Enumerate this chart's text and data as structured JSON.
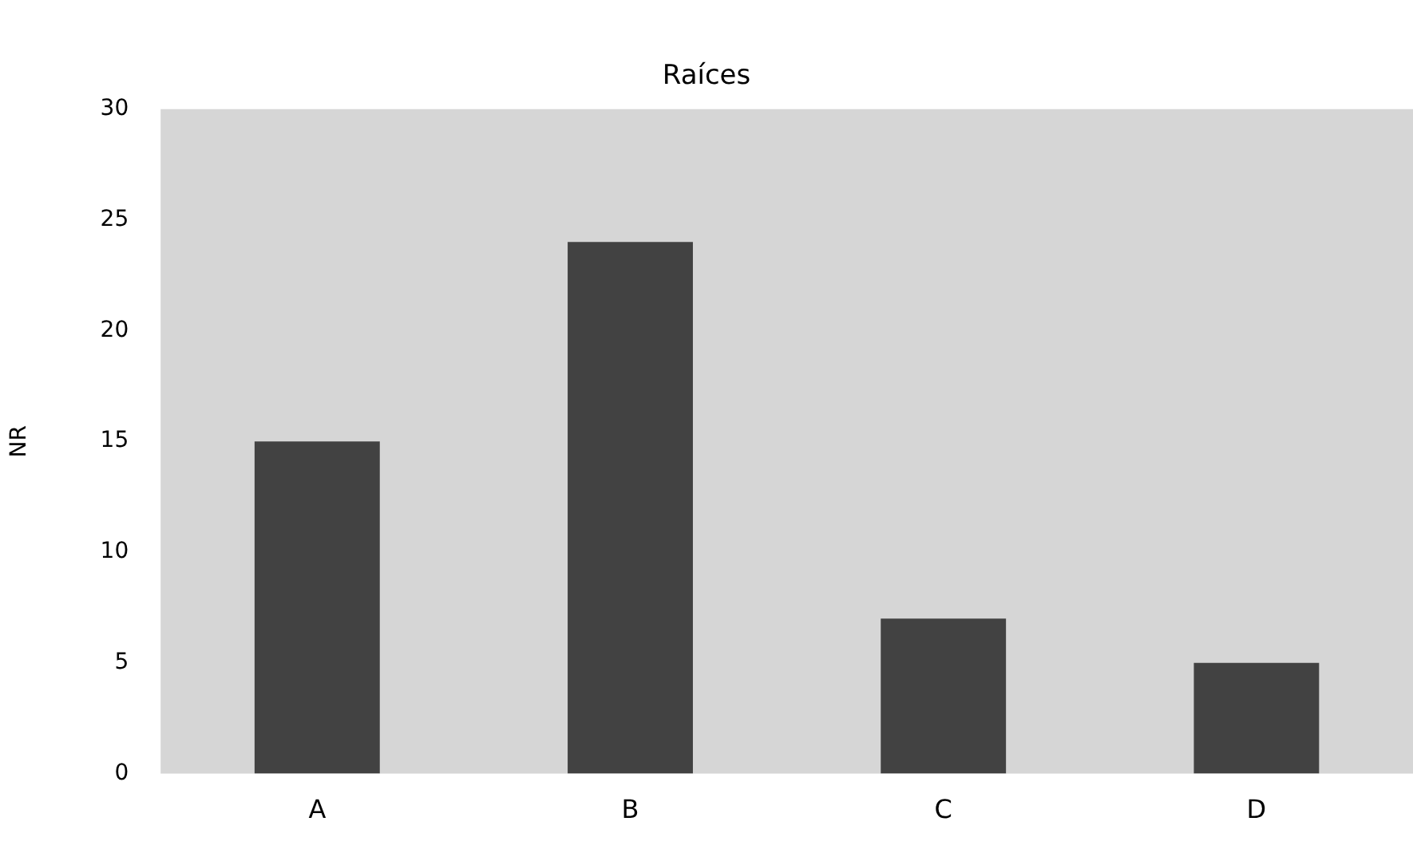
{
  "chart_data": {
    "type": "bar",
    "title": "Raíces",
    "ylabel": "NR",
    "categories": [
      "A",
      "B",
      "C",
      "D"
    ],
    "values": [
      15,
      24,
      7,
      5
    ],
    "color": "#424242",
    "ylim": [
      0,
      30
    ],
    "yticks": [
      0,
      5,
      10,
      15,
      20,
      25,
      30
    ],
    "grid": false,
    "legend": false
  }
}
